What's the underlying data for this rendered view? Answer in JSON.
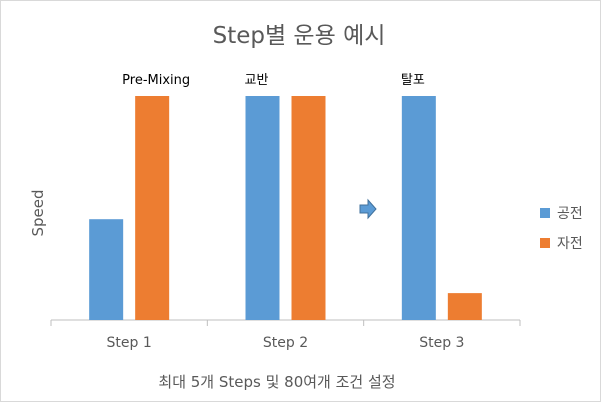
{
  "chart_data": {
    "type": "bar",
    "title": "Step별 운용 예시",
    "xlabel": "최대 5개 Steps 및 80여개 조건 설정",
    "ylabel": "Speed",
    "categories": [
      "Step 1",
      "Step 2",
      "Step 3"
    ],
    "series": [
      {
        "name": "공전",
        "color": "#5b9bd5",
        "values": [
          45,
          100,
          100
        ]
      },
      {
        "name": "자전",
        "color": "#ed7d31",
        "values": [
          100,
          100,
          12
        ]
      }
    ],
    "annotations": [
      "Pre-Mixing",
      "교반",
      "탈포"
    ],
    "arrow_icon": "right-arrow-icon",
    "ylim": [
      0,
      100
    ],
    "grid": false,
    "legend": "right"
  }
}
